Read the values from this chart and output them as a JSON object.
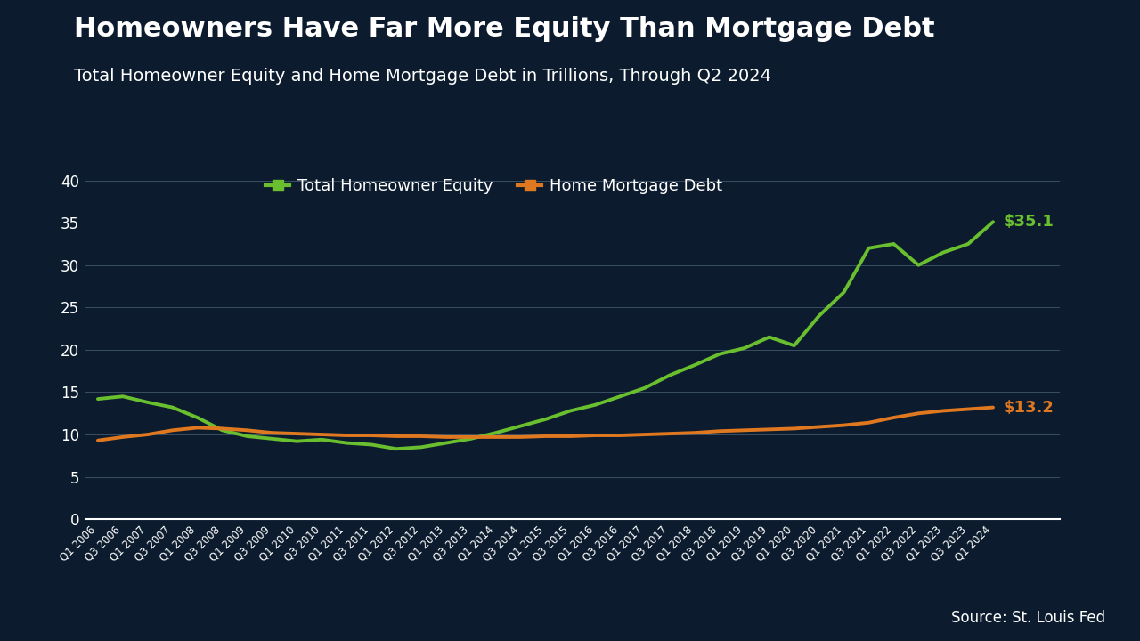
{
  "title": "Homeowners Have Far More Equity Than Mortgage Debt",
  "subtitle": "Total Homeowner Equity and Home Mortgage Debt in Trillions, Through Q2 2024",
  "source": "Source: St. Louis Fed",
  "background_color": "#0c1c2e",
  "plot_bg_color": "#0c1c2e",
  "title_color": "#ffffff",
  "subtitle_color": "#ffffff",
  "source_color": "#ffffff",
  "grid_color": "#3a4f62",
  "tick_color": "#ffffff",
  "footer_color": "#1a72b8",
  "equity_label": "Total Homeowner Equity",
  "debt_label": "Home Mortgage Debt",
  "equity_color": "#6abf2e",
  "debt_color": "#e07820",
  "equity_end_label": "$35.1",
  "debt_end_label": "$13.2",
  "quarters": [
    "Q1 2006",
    "Q3 2006",
    "Q1 2007",
    "Q3 2007",
    "Q1 2008",
    "Q3 2008",
    "Q1 2009",
    "Q3 2009",
    "Q1 2010",
    "Q3 2010",
    "Q1 2011",
    "Q3 2011",
    "Q1 2012",
    "Q3 2012",
    "Q1 2013",
    "Q3 2013",
    "Q1 2014",
    "Q3 2014",
    "Q1 2015",
    "Q3 2015",
    "Q1 2016",
    "Q3 2016",
    "Q1 2017",
    "Q3 2017",
    "Q1 2018",
    "Q3 2018",
    "Q1 2019",
    "Q3 2019",
    "Q1 2020",
    "Q3 2020",
    "Q1 2021",
    "Q3 2021",
    "Q1 2022",
    "Q3 2022",
    "Q1 2023",
    "Q3 2023",
    "Q1 2024"
  ],
  "equity_values": [
    14.2,
    14.5,
    13.8,
    13.2,
    12.0,
    10.5,
    9.8,
    9.5,
    9.2,
    9.4,
    9.0,
    8.8,
    8.3,
    8.5,
    9.0,
    9.5,
    10.2,
    11.0,
    11.8,
    12.8,
    13.5,
    14.5,
    15.5,
    17.0,
    18.2,
    19.5,
    20.2,
    21.5,
    20.5,
    24.0,
    26.8,
    32.0,
    32.5,
    30.0,
    31.5,
    32.5,
    35.1
  ],
  "debt_values": [
    9.3,
    9.7,
    10.0,
    10.5,
    10.8,
    10.7,
    10.5,
    10.2,
    10.1,
    10.0,
    9.9,
    9.9,
    9.8,
    9.8,
    9.7,
    9.7,
    9.7,
    9.7,
    9.8,
    9.8,
    9.9,
    9.9,
    10.0,
    10.1,
    10.2,
    10.4,
    10.5,
    10.6,
    10.7,
    10.9,
    11.1,
    11.4,
    12.0,
    12.5,
    12.8,
    13.0,
    13.2
  ],
  "ylim": [
    0,
    42
  ],
  "yticks": [
    0,
    5,
    10,
    15,
    20,
    25,
    30,
    35,
    40
  ],
  "line_width": 2.8
}
